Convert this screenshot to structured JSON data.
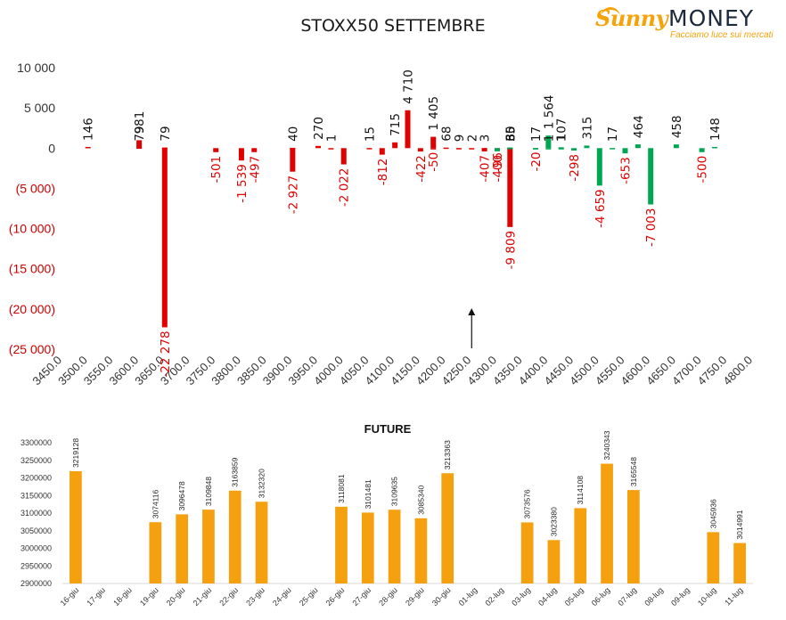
{
  "title": "STOXX50 SETTEMBRE",
  "logo": {
    "sunny": "Sunny",
    "money": "MONEY",
    "tagline": "Facciamo luce sui mercati"
  },
  "colors": {
    "negative": "#e00000",
    "positive": "#00a651",
    "future_bar": "#f5a00f"
  },
  "chart_data": [
    {
      "type": "bar",
      "title": "STOXX50 SETTEMBRE",
      "ylim": [
        -25000,
        10000
      ],
      "y_ticks": [
        "10 000",
        "5 000",
        "0",
        "(5 000)",
        "(10 000)",
        "(15 000)",
        "(20 000)",
        "(25 000)"
      ],
      "x_ticks": [
        "3450.0",
        "3500.0",
        "3550.0",
        "3600.0",
        "3650.0",
        "3700.0",
        "3750.0",
        "3800.0",
        "3850.0",
        "3900.0",
        "3950.0",
        "4000.0",
        "4050.0",
        "4100.0",
        "4150.0",
        "4200.0",
        "4250.0",
        "4300.0",
        "4350.0",
        "4400.0",
        "4450.0",
        "4500.0",
        "4550.0",
        "4600.0",
        "4650.0",
        "4700.0",
        "4750.0",
        "4800.0"
      ],
      "marker_strike": 4250,
      "bars": [
        {
          "strike": 3500,
          "value": 146,
          "label": "146",
          "side": "put"
        },
        {
          "strike": 3600,
          "value": 981,
          "label": "981",
          "side": "put"
        },
        {
          "strike": 3600,
          "value": 79,
          "label": "79",
          "side": "put"
        },
        {
          "strike": 3650,
          "value": 79,
          "label": "79",
          "side": "put"
        },
        {
          "strike": 3650,
          "value": -22278,
          "label": "-22 278",
          "side": "put"
        },
        {
          "strike": 3750,
          "value": -501,
          "label": "-501",
          "side": "put"
        },
        {
          "strike": 3800,
          "value": -1539,
          "label": "-1 539",
          "side": "put"
        },
        {
          "strike": 3825,
          "value": -497,
          "label": "-497",
          "side": "put"
        },
        {
          "strike": 3900,
          "value": -2927,
          "label": "-2 927",
          "side": "put"
        },
        {
          "strike": 3900,
          "value": 40,
          "label": "40",
          "side": "put"
        },
        {
          "strike": 3950,
          "value": 270,
          "label": "270",
          "side": "put"
        },
        {
          "strike": 3975,
          "value": 1,
          "label": "1",
          "side": "put"
        },
        {
          "strike": 4000,
          "value": -2022,
          "label": "-2 022",
          "side": "put"
        },
        {
          "strike": 4050,
          "value": 15,
          "label": "15",
          "side": "put"
        },
        {
          "strike": 4075,
          "value": -812,
          "label": "-812",
          "side": "put"
        },
        {
          "strike": 4100,
          "value": 715,
          "label": "715",
          "side": "put"
        },
        {
          "strike": 4125,
          "value": 4710,
          "label": "4 710",
          "side": "put"
        },
        {
          "strike": 4150,
          "value": -422,
          "label": "-422",
          "side": "put"
        },
        {
          "strike": 4175,
          "value": -50,
          "label": "-50",
          "side": "put"
        },
        {
          "strike": 4175,
          "value": 1405,
          "label": "1 405",
          "side": "put"
        },
        {
          "strike": 4200,
          "value": 68,
          "label": "68",
          "side": "put"
        },
        {
          "strike": 4225,
          "value": 9,
          "label": "9",
          "side": "put"
        },
        {
          "strike": 4250,
          "value": 2,
          "label": "2",
          "side": "put"
        },
        {
          "strike": 4275,
          "value": 3,
          "label": "3",
          "side": "put"
        },
        {
          "strike": 4275,
          "value": -407,
          "label": "-407",
          "side": "put"
        },
        {
          "strike": 4300,
          "value": -96,
          "label": "-96",
          "side": "put"
        },
        {
          "strike": 4300,
          "value": -400,
          "label": "-400",
          "side": "call"
        },
        {
          "strike": 4325,
          "value": -9809,
          "label": "-9 809",
          "side": "put"
        },
        {
          "strike": 4325,
          "value": 35,
          "label": "35",
          "side": "call"
        },
        {
          "strike": 4325,
          "value": 80,
          "label": "80",
          "side": "call"
        },
        {
          "strike": 4325,
          "value": 65,
          "label": "65",
          "side": "call"
        },
        {
          "strike": 4375,
          "value": -20,
          "label": "-20",
          "side": "call"
        },
        {
          "strike": 4375,
          "value": 17,
          "label": "17",
          "side": "call"
        },
        {
          "strike": 4400,
          "value": 1564,
          "label": "1 564",
          "side": "call"
        },
        {
          "strike": 4400,
          "value": 1,
          "label": "1",
          "side": "call"
        },
        {
          "strike": 4425,
          "value": 107,
          "label": "107",
          "side": "call"
        },
        {
          "strike": 4425,
          "value": 1,
          "label": "1",
          "side": "call"
        },
        {
          "strike": 4450,
          "value": -298,
          "label": "-298",
          "side": "call"
        },
        {
          "strike": 4475,
          "value": 315,
          "label": "315",
          "side": "call"
        },
        {
          "strike": 4500,
          "value": -4659,
          "label": "-4 659",
          "side": "call"
        },
        {
          "strike": 4525,
          "value": 17,
          "label": "17",
          "side": "call"
        },
        {
          "strike": 4550,
          "value": -653,
          "label": "-653",
          "side": "call"
        },
        {
          "strike": 4575,
          "value": 464,
          "label": "464",
          "side": "call"
        },
        {
          "strike": 4600,
          "value": -7003,
          "label": "-7 003",
          "side": "call"
        },
        {
          "strike": 4650,
          "value": 458,
          "label": "458",
          "side": "call"
        },
        {
          "strike": 4700,
          "value": -500,
          "label": "-500",
          "side": "call"
        },
        {
          "strike": 4725,
          "value": 148,
          "label": "148",
          "side": "call"
        }
      ]
    },
    {
      "type": "bar",
      "title": "FUTURE",
      "ylim": [
        2900000,
        3300000
      ],
      "y_ticks": [
        "3300000",
        "3250000",
        "3200000",
        "3150000",
        "3100000",
        "3050000",
        "3000000",
        "2950000",
        "2900000"
      ],
      "categories": [
        "16-giu",
        "17-giu",
        "18-giu",
        "19-giu",
        "20-giu",
        "21-giu",
        "22-giu",
        "23-giu",
        "24-giu",
        "25-giu",
        "26-giu",
        "27-giu",
        "28-giu",
        "29-giu",
        "30-giu",
        "01-lug",
        "02-lug",
        "03-lug",
        "04-lug",
        "05-lug",
        "06-lug",
        "07-lug",
        "08-lug",
        "09-lug",
        "10-lug",
        "11-lug"
      ],
      "values": [
        3219128,
        null,
        null,
        3074116,
        3096478,
        3109848,
        3163859,
        3132320,
        null,
        null,
        3118081,
        3101481,
        3109635,
        3085340,
        3213363,
        null,
        null,
        3073576,
        3023380,
        3114108,
        3240343,
        3165548,
        null,
        null,
        3045936,
        3014991
      ],
      "labels": [
        "3219128",
        "",
        "",
        "3074116",
        "3096478",
        "3109848",
        "3163859",
        "3132320",
        "",
        "",
        "3118081",
        "3101481",
        "3109635",
        "3085340",
        "3213363",
        "",
        "",
        "3073576",
        "3023380",
        "3114108",
        "3240343",
        "3165548",
        "",
        "",
        "3045936",
        "3014991"
      ]
    }
  ]
}
